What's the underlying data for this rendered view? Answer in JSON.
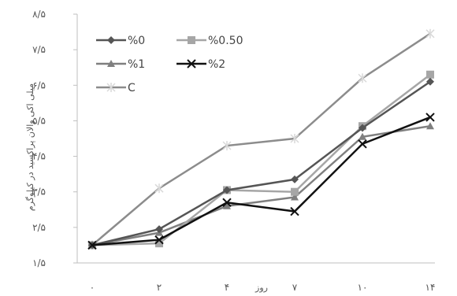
{
  "chart_data": {
    "type": "line",
    "title": "",
    "ylabel": "میلی اکی والان پراکسید در کیلوگرم",
    "xlabel": "روز",
    "categories": [
      "۰",
      "۲",
      "۴",
      "۷",
      "۱۰",
      "۱۴"
    ],
    "y_ticks": [
      "۱/۵",
      "۲/۵",
      "۳/۵",
      "۴/۵",
      "۵/۵",
      "۶/۵",
      "۷/۵",
      "۸/۵"
    ],
    "ylim": [
      1.5,
      8.5
    ],
    "grid": false,
    "legend_position": "top-left",
    "series": [
      {
        "name": "%0",
        "color": "#555555",
        "marker": "diamond",
        "values": [
          2.0,
          2.45,
          3.55,
          3.85,
          5.3,
          6.6
        ]
      },
      {
        "name": "%0.50",
        "color": "#a6a6a6",
        "marker": "square",
        "values": [
          2.0,
          2.05,
          3.55,
          3.5,
          5.35,
          6.8
        ]
      },
      {
        "name": "%1",
        "color": "#7f7f7f",
        "marker": "triangle",
        "values": [
          2.0,
          2.35,
          3.1,
          3.35,
          5.05,
          5.35
        ]
      },
      {
        "name": "%2",
        "color": "#111111",
        "marker": "x",
        "values": [
          2.0,
          2.15,
          3.2,
          2.95,
          4.85,
          5.6
        ]
      },
      {
        "name": "C",
        "color": "#8c8c8c",
        "marker": "star",
        "values": [
          2.0,
          3.6,
          4.8,
          5.0,
          6.7,
          7.95
        ]
      }
    ]
  }
}
